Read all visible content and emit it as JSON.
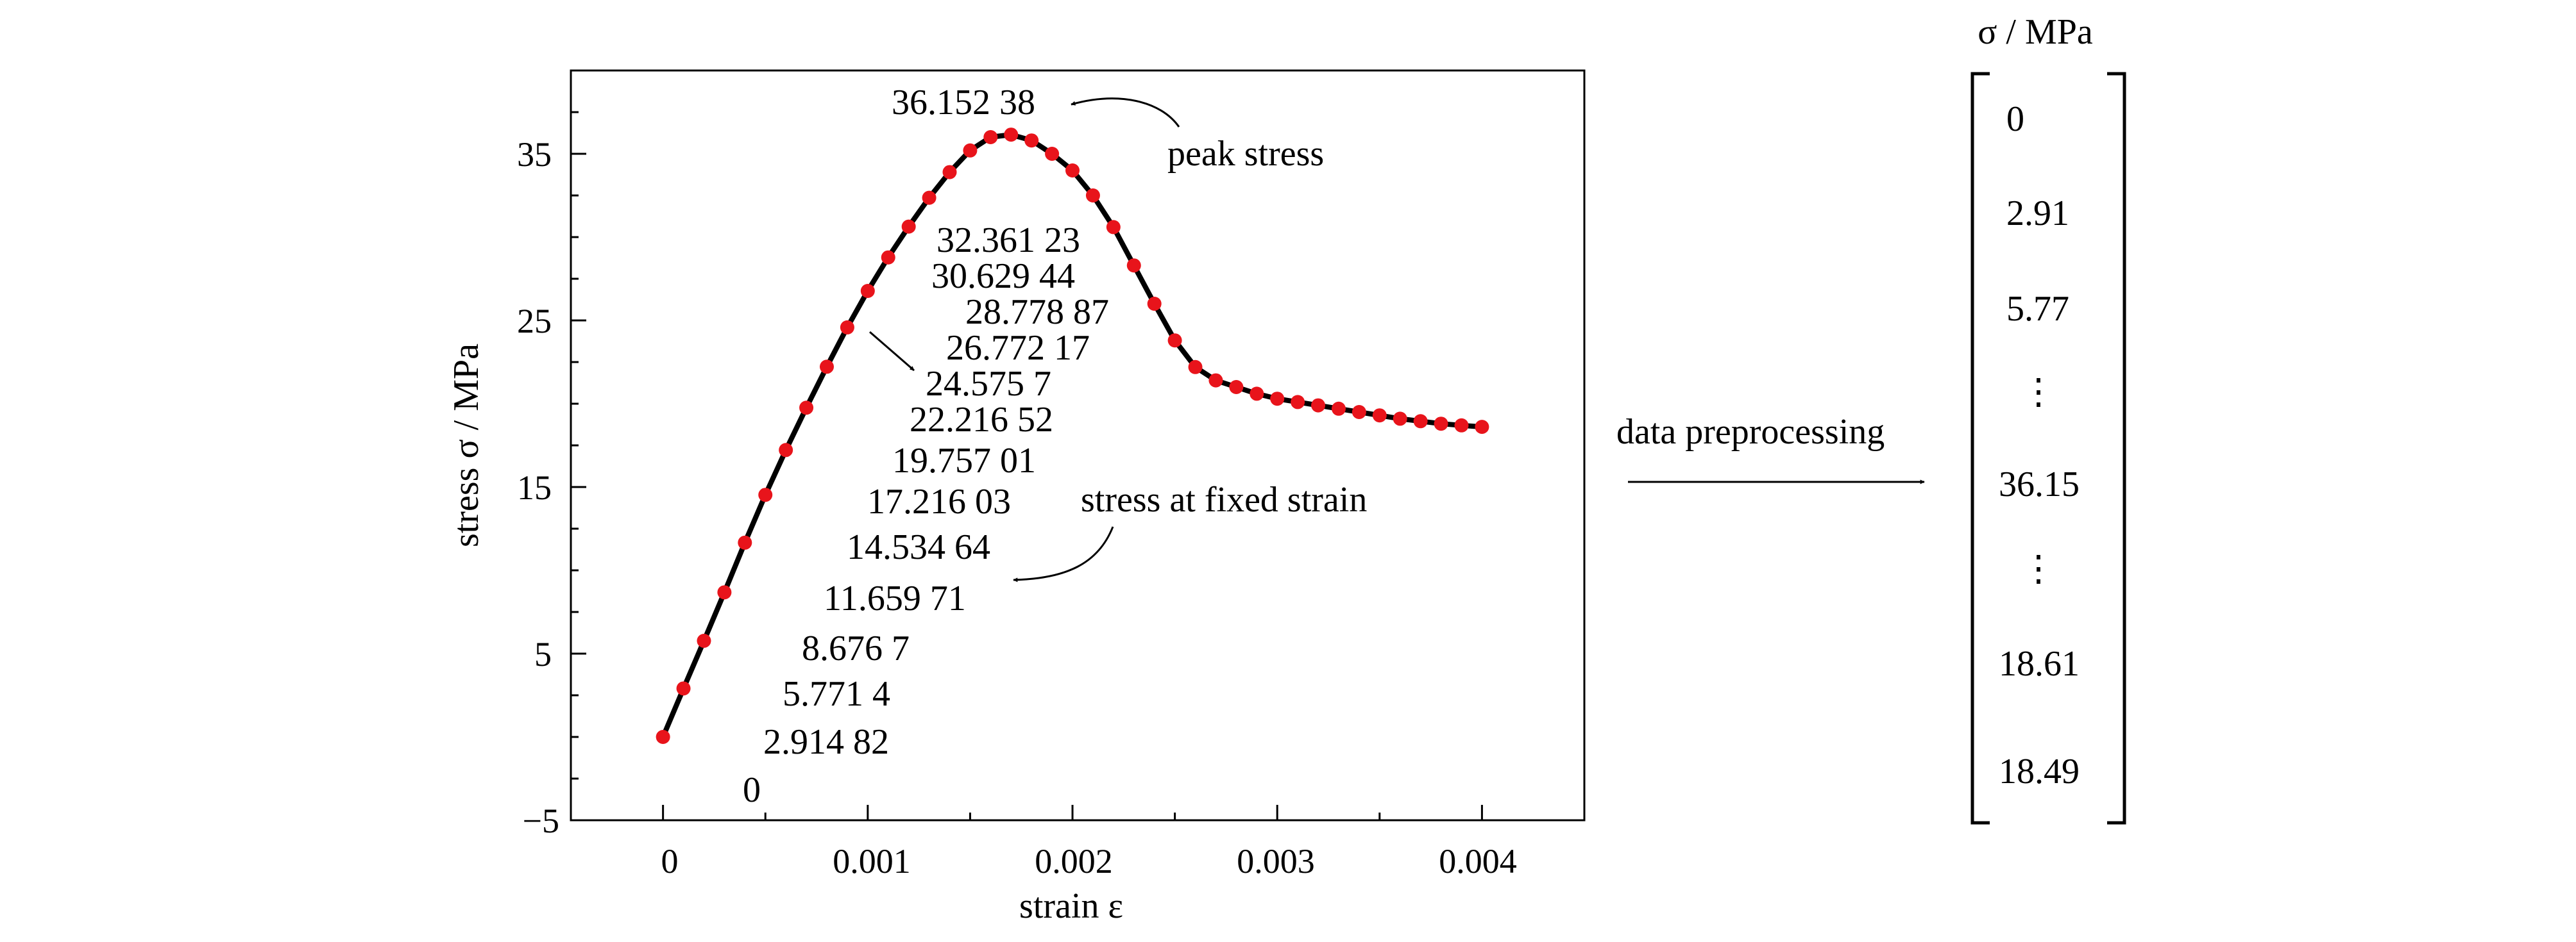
{
  "chart_data": {
    "type": "line",
    "xlabel": "strain ε",
    "ylabel": "stress σ / MPa",
    "xlim": [
      -0.00045,
      0.0045
    ],
    "ylim": [
      -5,
      40
    ],
    "x_ticks": [
      "0",
      "0.001",
      "0.002",
      "0.003",
      "0.004"
    ],
    "x_tick_values": [
      0,
      0.001,
      0.002,
      0.003,
      0.004
    ],
    "y_ticks": [
      "−5",
      "5",
      "15",
      "25",
      "35"
    ],
    "y_tick_values": [
      -5,
      5,
      15,
      25,
      35
    ],
    "grid": false,
    "series": [
      {
        "marker": "circle",
        "line_color": "#000000",
        "marker_color": "#e8141b",
        "x": [
          0,
          0.0001,
          0.0002,
          0.0003,
          0.0004,
          0.0005,
          0.0006,
          0.0007,
          0.0008,
          0.0009,
          0.001,
          0.0011,
          0.0012,
          0.0013,
          0.0014,
          0.0015,
          0.0016,
          0.0017,
          0.0018,
          0.0019,
          0.002,
          0.0021,
          0.0022,
          0.0023,
          0.0024,
          0.0025,
          0.0026,
          0.0027,
          0.0028,
          0.0029,
          0.003,
          0.0031,
          0.0032,
          0.0033,
          0.0034,
          0.0035,
          0.0036,
          0.0037,
          0.0038,
          0.0039,
          0.004
        ],
        "y": [
          0,
          2.91,
          5.77,
          8.68,
          11.66,
          14.53,
          17.22,
          19.76,
          22.22,
          24.58,
          26.77,
          28.78,
          30.63,
          32.36,
          33.9,
          35.2,
          36.0,
          36.15,
          35.8,
          35.0,
          34.0,
          32.5,
          30.6,
          28.3,
          26.0,
          23.8,
          22.2,
          21.4,
          21.0,
          20.6,
          20.3,
          20.1,
          19.9,
          19.7,
          19.5,
          19.3,
          19.1,
          18.95,
          18.8,
          18.7,
          18.61
        ]
      }
    ],
    "value_list_labels": [
      "36.152 38",
      "32.361 23",
      "30.629 44",
      "28.778 87",
      "26.772 17",
      "24.575 7",
      "22.216 52",
      "19.757 01",
      "17.216 03",
      "14.534 64",
      "11.659 71",
      "8.676 7",
      "5.771 4",
      "2.914 82",
      "0"
    ],
    "annotations": [
      "peak stress",
      "stress at fixed strain"
    ],
    "arrow_label": "data preprocessing",
    "matrix": {
      "title": "σ / MPa",
      "entries": [
        "0",
        "2.91",
        "5.77",
        "⋮",
        "36.15",
        "⋮",
        "18.61",
        "18.49"
      ]
    }
  }
}
